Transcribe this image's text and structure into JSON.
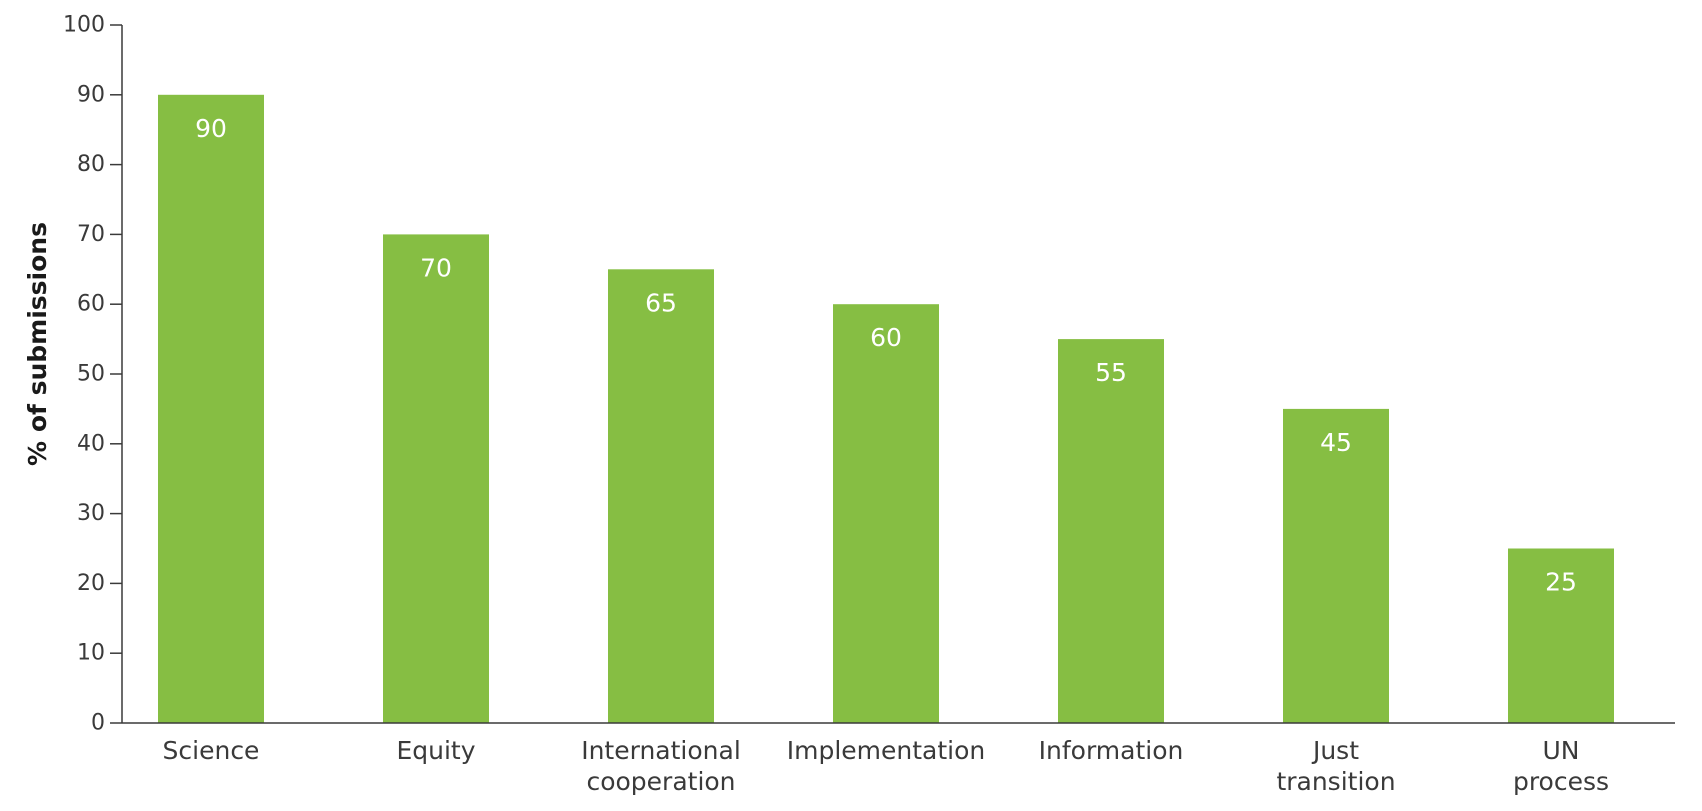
{
  "chart_data": {
    "type": "bar",
    "title": "",
    "xlabel": "",
    "ylabel": "% of submissions",
    "ylim": [
      0,
      100
    ],
    "yticks": [
      0,
      10,
      20,
      30,
      40,
      50,
      60,
      70,
      80,
      90,
      100
    ],
    "categories": [
      [
        "Science"
      ],
      [
        "Equity"
      ],
      [
        "International",
        "cooperation"
      ],
      [
        "Implementation"
      ],
      [
        "Information"
      ],
      [
        "Just",
        "transition"
      ],
      [
        "UN",
        "process"
      ]
    ],
    "values": [
      90,
      70,
      65,
      60,
      55,
      45,
      25
    ],
    "data_labels": [
      "90",
      "70",
      "65",
      "60",
      "55",
      "45",
      "25"
    ],
    "grid": false,
    "legend": "none",
    "bar_color": "#86be43"
  }
}
